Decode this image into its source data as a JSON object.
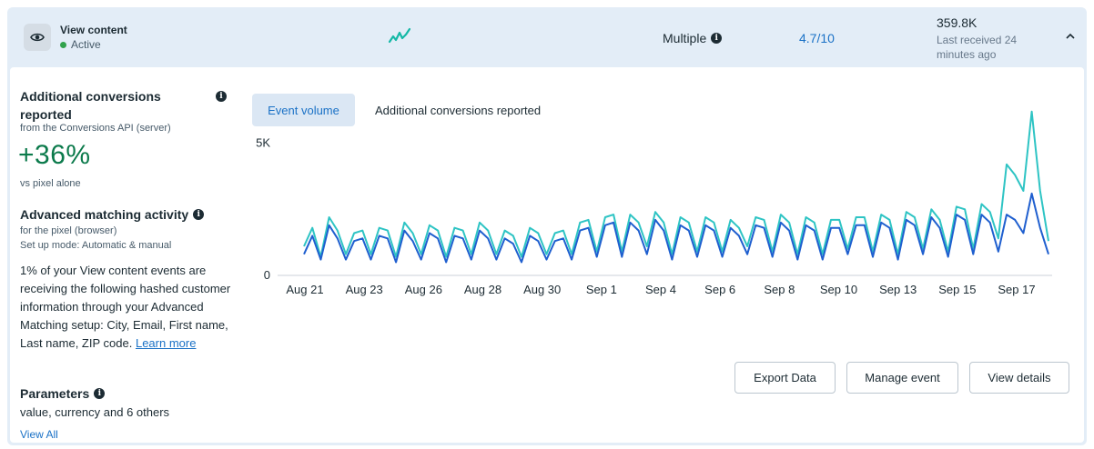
{
  "event": {
    "name": "View content",
    "status": "Active",
    "match_quality_label": "Multiple",
    "score": "4.7/10",
    "total": "359.8K",
    "last_received": "Last received 24 minutes ago",
    "status_color": "#31a24c",
    "spark_color": "#14b8a6",
    "eye_icon": "eye-icon",
    "chevron_icon": "chevron-up-icon"
  },
  "left": {
    "add_conv_title": "Additional conversions reported",
    "add_conv_source": "from the Conversions API (server)",
    "add_conv_pct": "+36%",
    "add_conv_vs": "vs pixel alone",
    "adv_title": "Advanced matching activity",
    "adv_sub1": "for the pixel (browser)",
    "adv_sub2": "Set up mode: Automatic & manual",
    "adv_body": "1% of your View content events are receiving the following hashed customer information through your Advanced Matching setup: City, Email, First name, Last name, ZIP code.",
    "adv_link": "Learn more",
    "params_title": "Parameters",
    "params_value": "value, currency and 6 others",
    "view_all": "View All"
  },
  "tabs": [
    {
      "label": "Event volume",
      "active": true
    },
    {
      "label": "Additional conversions reported",
      "active": false
    }
  ],
  "buttons": {
    "export": "Export Data",
    "manage": "Manage event",
    "details": "View details"
  },
  "chart_data": {
    "type": "line",
    "x_labels": [
      "Aug 21",
      "Aug 23",
      "Aug 26",
      "Aug 28",
      "Aug 30",
      "Sep 1",
      "Sep 4",
      "Sep 6",
      "Sep 8",
      "Sep 10",
      "Sep 13",
      "Sep 15",
      "Sep 17"
    ],
    "y_ticks": [
      "5K",
      "0"
    ],
    "ylim": [
      0,
      6500
    ],
    "colors": {
      "total": "#2ec4c4",
      "pixel": "#1f5fcf"
    },
    "series": [
      {
        "key": "total",
        "values": [
          1100,
          1800,
          700,
          2200,
          1700,
          800,
          1600,
          1700,
          800,
          1800,
          1700,
          700,
          2000,
          1600,
          800,
          1900,
          1700,
          700,
          1800,
          1700,
          800,
          2000,
          1700,
          800,
          1700,
          1500,
          700,
          1800,
          1600,
          800,
          1600,
          1700,
          800,
          2000,
          2100,
          900,
          2200,
          2300,
          900,
          2300,
          2000,
          1100,
          2400,
          2000,
          800,
          2200,
          2000,
          900,
          2200,
          2000,
          900,
          2100,
          1800,
          1100,
          2200,
          2100,
          900,
          2300,
          2000,
          800,
          2200,
          2000,
          800,
          2100,
          2100,
          1000,
          2200,
          2200,
          900,
          2300,
          2100,
          800,
          2400,
          2200,
          1000,
          2500,
          2100,
          900,
          2600,
          2500,
          1000,
          2700,
          2400,
          1400,
          4200,
          3800,
          3200,
          6200,
          3200,
          1300
        ]
      },
      {
        "key": "pixel",
        "values": [
          800,
          1500,
          600,
          1900,
          1400,
          600,
          1300,
          1400,
          600,
          1500,
          1400,
          500,
          1700,
          1300,
          600,
          1600,
          1400,
          500,
          1500,
          1400,
          600,
          1700,
          1400,
          600,
          1400,
          1200,
          500,
          1500,
          1300,
          600,
          1300,
          1400,
          600,
          1700,
          1800,
          700,
          1900,
          2000,
          700,
          2000,
          1700,
          800,
          2100,
          1700,
          600,
          1900,
          1700,
          700,
          1900,
          1700,
          700,
          1800,
          1500,
          800,
          1900,
          1800,
          700,
          2000,
          1700,
          600,
          1900,
          1700,
          600,
          1800,
          1800,
          800,
          1900,
          1900,
          700,
          2000,
          1800,
          600,
          2100,
          1900,
          800,
          2200,
          1800,
          700,
          2300,
          2100,
          800,
          2300,
          2000,
          900,
          2300,
          2100,
          1600,
          3100,
          1800,
          800
        ]
      }
    ]
  }
}
